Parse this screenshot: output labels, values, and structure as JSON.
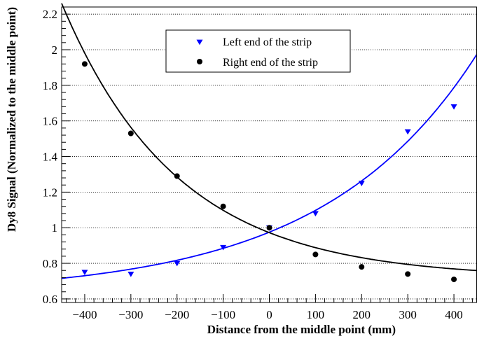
{
  "chart_data": {
    "type": "scatter",
    "title": "",
    "xlabel": "Distance from the middle point (mm)",
    "ylabel": "Dy8 Signal (Normalized to the middle point)",
    "xlim": [
      -450,
      450
    ],
    "ylim": [
      0.58,
      2.24
    ],
    "xticks": [
      -400,
      -300,
      -200,
      -100,
      0,
      100,
      200,
      300,
      400
    ],
    "xtick_labels": [
      "−400",
      "−300",
      "−200",
      "−100",
      "0",
      "100",
      "200",
      "300",
      "400"
    ],
    "yticks": [
      0.6,
      0.8,
      1.0,
      1.2,
      1.4,
      1.6,
      1.8,
      2.0,
      2.2
    ],
    "ytick_labels": [
      "0.6",
      "0.8",
      "1",
      "1.2",
      "1.4",
      "1.6",
      "1.8",
      "2",
      "2.2"
    ],
    "grid": true,
    "legend_position": "top-center",
    "series": [
      {
        "name": "Left end of the strip",
        "marker": "triangle-down",
        "color": "#0000ff",
        "x": [
          -400,
          -300,
          -200,
          -100,
          0,
          100,
          200,
          300,
          400
        ],
        "y": [
          0.75,
          0.74,
          0.8,
          0.89,
          1.0,
          1.08,
          1.25,
          1.54,
          1.68
        ],
        "fit": {
          "type": "exponential",
          "a": 0.625,
          "b": 0.3501,
          "c": 0.003,
          "xrange": [
            -450,
            450
          ]
        }
      },
      {
        "name": "Right end of the strip",
        "marker": "circle",
        "color": "#000000",
        "x": [
          -400,
          -300,
          -200,
          -100,
          0,
          100,
          200,
          300,
          400
        ],
        "y": [
          1.92,
          1.53,
          1.29,
          1.12,
          1.0,
          0.85,
          0.78,
          0.74,
          0.71
        ],
        "fit": {
          "type": "exponential",
          "a": 0.7173,
          "b": 0.2551,
          "c": -0.004,
          "xrange": [
            -450,
            450
          ]
        }
      }
    ]
  }
}
